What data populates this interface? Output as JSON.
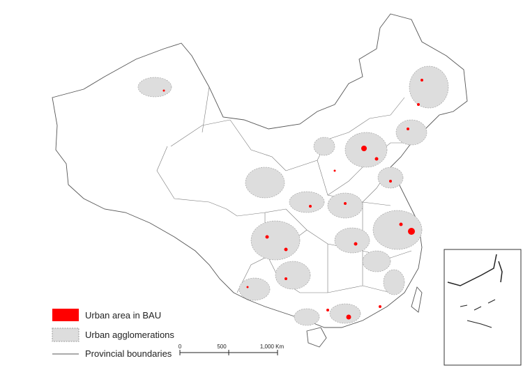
{
  "legend": {
    "items": [
      "Urban area in BAU",
      "Urban agglomerations",
      "Provincial boundaries"
    ]
  },
  "scale_bar": {
    "labels": [
      "0",
      "500",
      "1,000 Km"
    ]
  }
}
